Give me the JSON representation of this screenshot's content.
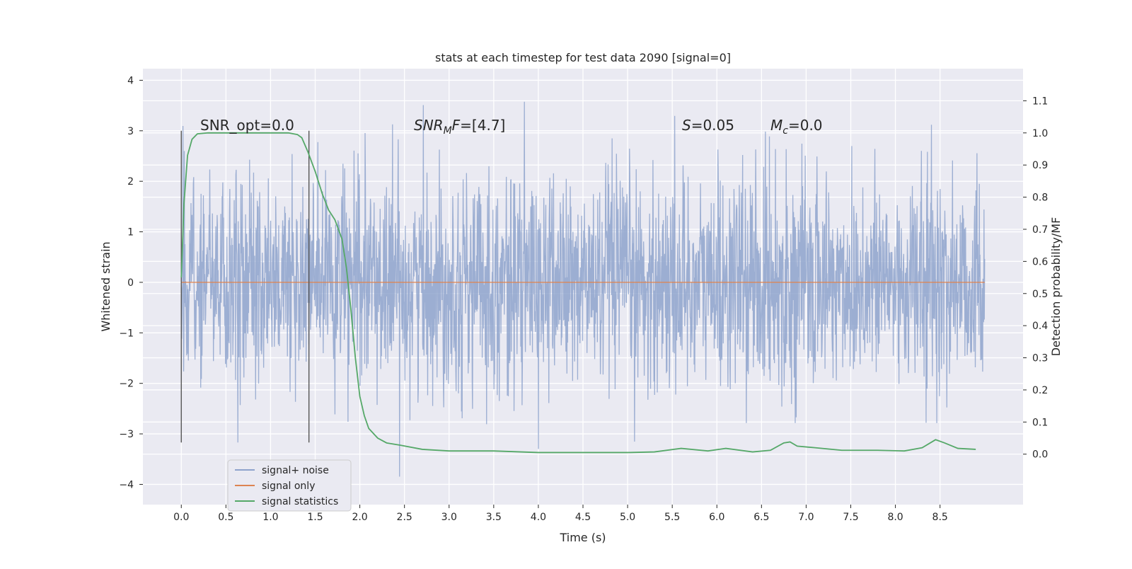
{
  "chart_data": {
    "type": "line",
    "title": "stats at each timestep for test data 2090 [signal=0]",
    "xlabel": "Time (s)",
    "ylabel": "Whitened strain",
    "ylabel_right": "Detection probability/MF",
    "xlim": [
      -0.43,
      9.43
    ],
    "ylim": [
      -4.4,
      4.23
    ],
    "ylim_right": [
      -0.157,
      1.2
    ],
    "x_ticks": [
      "0.0",
      "0.5",
      "1.0",
      "1.5",
      "2.0",
      "2.5",
      "3.0",
      "3.5",
      "4.0",
      "4.5",
      "5.0",
      "5.5",
      "6.0",
      "6.5",
      "7.0",
      "7.5",
      "8.0",
      "8.5"
    ],
    "y_ticks": [
      "4",
      "3",
      "2",
      "1",
      "0",
      "−1",
      "−2",
      "−3",
      "−4"
    ],
    "y_ticks_right": [
      "1.1",
      "1.0",
      "0.9",
      "0.8",
      "0.7",
      "0.6",
      "0.5",
      "0.4",
      "0.3",
      "0.2",
      "0.1",
      "0.0"
    ],
    "grid": true,
    "legend_position": "lower-left",
    "colors": {
      "noise": "#8ea3cc",
      "signal": "#dd8452",
      "stats": "#55a868",
      "background": "#eaeaf2",
      "marker": "#555555"
    },
    "series": [
      {
        "name": "signal+ noise",
        "x_range": [
          0.0,
          9.0
        ],
        "envelope_abs_max": 3.9,
        "note_visible_range": [
          -4.0,
          3.87
        ]
      },
      {
        "name": "signal only",
        "x": [
          0.0,
          9.0
        ],
        "y": [
          0.0,
          0.0
        ]
      },
      {
        "name": "signal statistics",
        "axis": "right",
        "x": [
          0.0,
          0.03,
          0.07,
          0.12,
          0.18,
          0.3,
          0.5,
          0.8,
          1.0,
          1.2,
          1.3,
          1.35,
          1.42,
          1.5,
          1.58,
          1.65,
          1.72,
          1.8,
          1.85,
          1.9,
          1.95,
          2.0,
          2.05,
          2.1,
          2.2,
          2.3,
          2.45,
          2.7,
          3.0,
          3.5,
          4.0,
          4.5,
          5.0,
          5.3,
          5.6,
          5.9,
          6.1,
          6.4,
          6.6,
          6.75,
          6.82,
          6.9,
          7.1,
          7.4,
          7.8,
          8.1,
          8.3,
          8.45,
          8.55,
          8.7,
          8.9
        ],
        "y": [
          0.55,
          0.78,
          0.93,
          0.98,
          0.997,
          1.0,
          1.0,
          1.0,
          1.0,
          1.0,
          0.995,
          0.985,
          0.94,
          0.88,
          0.81,
          0.76,
          0.73,
          0.67,
          0.58,
          0.45,
          0.3,
          0.18,
          0.12,
          0.08,
          0.05,
          0.035,
          0.028,
          0.015,
          0.01,
          0.01,
          0.005,
          0.005,
          0.005,
          0.007,
          0.018,
          0.01,
          0.018,
          0.007,
          0.012,
          0.035,
          0.038,
          0.025,
          0.02,
          0.012,
          0.012,
          0.01,
          0.02,
          0.045,
          0.035,
          0.018,
          0.015
        ]
      }
    ],
    "markers_x": [
      0.0,
      1.43
    ],
    "annotations": [
      {
        "id": "snr_opt",
        "parts": [
          {
            "t": "SNR_opt=0.0",
            "style": "normal"
          }
        ]
      },
      {
        "id": "snr_mf",
        "parts": [
          {
            "t": "SNR",
            "style": "italic"
          },
          {
            "t": "M",
            "style": "italic-sub"
          },
          {
            "t": "F",
            "style": "italic"
          },
          {
            "t": "=[4.7]",
            "style": "normal"
          }
        ]
      },
      {
        "id": "s",
        "parts": [
          {
            "t": "S",
            "style": "italic"
          },
          {
            "t": "=0.05",
            "style": "normal"
          }
        ]
      },
      {
        "id": "mc",
        "parts": [
          {
            "t": "M",
            "style": "italic"
          },
          {
            "t": "c",
            "style": "italic-sub"
          },
          {
            "t": "=0.0",
            "style": "normal"
          }
        ]
      }
    ],
    "legend": [
      "signal+ noise",
      "signal only",
      "signal statistics"
    ]
  }
}
